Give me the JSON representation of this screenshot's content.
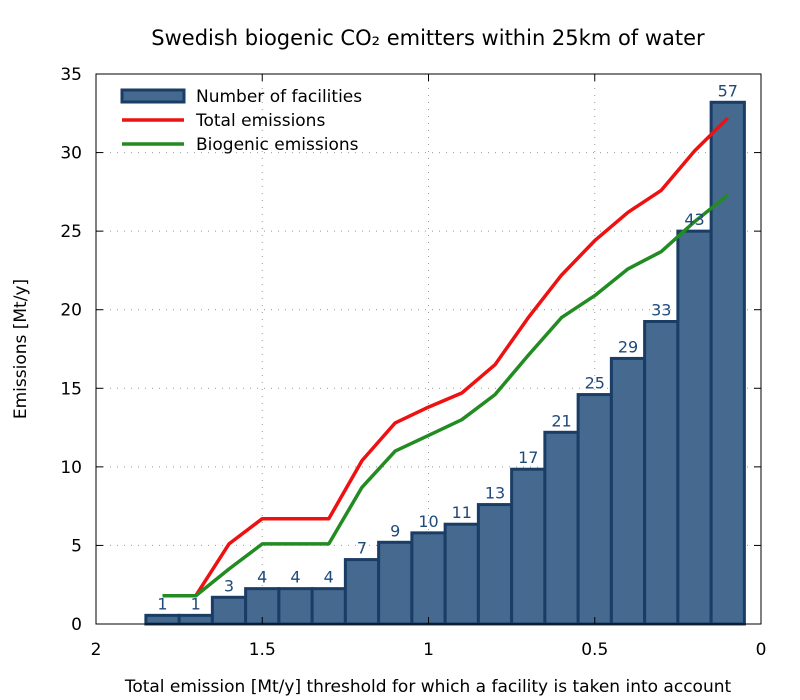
{
  "chart_data": {
    "type": "bar",
    "title": "Swedish biogenic CO₂ emitters within 25km of water",
    "xlabel": "Total emission [Mt/y] threshold for which a facility is taken into account",
    "ylabel": "Emissions [Mt/y]",
    "xlim": [
      2,
      0
    ],
    "ylim": [
      0,
      35
    ],
    "x_ticks": [
      "2",
      "1.5",
      "1",
      "0.5",
      "0"
    ],
    "y_ticks": [
      "0",
      "5",
      "10",
      "15",
      "20",
      "25",
      "30",
      "35"
    ],
    "grid": true,
    "legend_position": "top-left",
    "bar_color": "#46698f",
    "bar_edge_color": "#1a3d66",
    "x": [
      1.8,
      1.7,
      1.6,
      1.5,
      1.4,
      1.3,
      1.2,
      1.1,
      1.0,
      0.9,
      0.8,
      0.7,
      0.6,
      0.5,
      0.4,
      0.3,
      0.2,
      0.1
    ],
    "series": [
      {
        "name": "Number of facilities",
        "kind": "bar",
        "color": "#46698f",
        "values": [
          0.55,
          0.55,
          1.7,
          2.25,
          2.25,
          2.25,
          4.1,
          5.2,
          5.8,
          6.35,
          7.6,
          9.85,
          12.2,
          14.6,
          16.9,
          19.25,
          25.0,
          33.2
        ],
        "labels": [
          "1",
          "1",
          "3",
          "4",
          "4",
          "4",
          "7",
          "9",
          "10",
          "11",
          "13",
          "17",
          "21",
          "25",
          "29",
          "33",
          "43",
          "57"
        ]
      },
      {
        "name": "Total emissions",
        "kind": "line",
        "color": "#ee1111",
        "values": [
          1.8,
          1.8,
          5.1,
          6.7,
          6.7,
          6.7,
          10.4,
          12.8,
          13.8,
          14.7,
          16.5,
          19.5,
          22.2,
          24.4,
          26.2,
          27.6,
          30.1,
          32.2
        ]
      },
      {
        "name": "Biogenic emissions",
        "kind": "line",
        "color": "#228b22",
        "values": [
          1.8,
          1.8,
          3.5,
          5.1,
          5.1,
          5.1,
          8.7,
          11.0,
          12.0,
          13.0,
          14.6,
          17.1,
          19.5,
          20.9,
          22.6,
          23.7,
          25.6,
          27.3
        ]
      }
    ]
  }
}
